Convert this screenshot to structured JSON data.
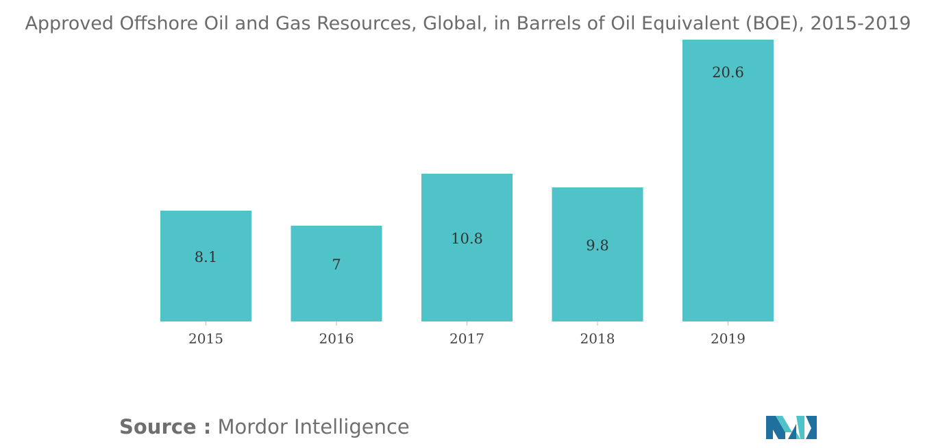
{
  "chart_data": {
    "type": "bar",
    "title": "Approved Offshore Oil and Gas Resources, Global, in Barrels of Oil Equivalent (BOE), 2015-2019",
    "categories": [
      "2015",
      "2016",
      "2017",
      "2018",
      "2019"
    ],
    "values": [
      8.1,
      7,
      10.8,
      9.8,
      20.6
    ],
    "data_labels": [
      "8.1",
      "7",
      "10.8",
      "9.8",
      "20.6"
    ],
    "xlabel": "",
    "ylabel": "",
    "grid": false,
    "legend": "none",
    "bar_color": "#4fc3c8"
  },
  "source": {
    "label": "Source :",
    "text": "Mordor Intelligence"
  },
  "logo": {
    "icon": "mordor-intelligence-logo",
    "colors": [
      "#1f6f9f",
      "#4fc3c8"
    ]
  }
}
